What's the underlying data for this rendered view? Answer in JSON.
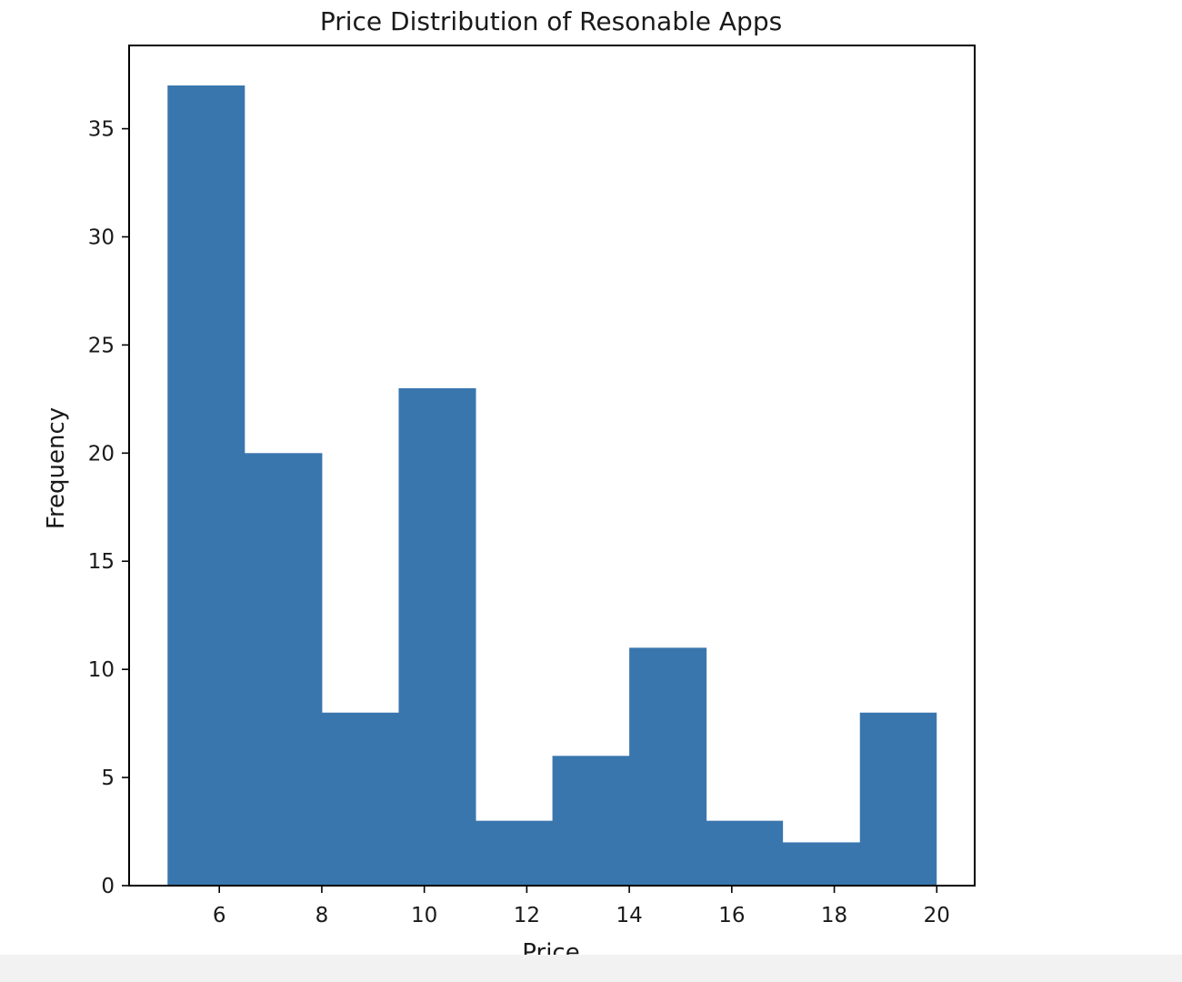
{
  "chart_data": {
    "type": "bar",
    "title": "Price Distribution of Resonable Apps",
    "xlabel": "Price",
    "ylabel": "Frequency",
    "bin_edges": [
      4.99,
      6.49,
      8.0,
      9.5,
      11.0,
      12.5,
      14.0,
      15.5,
      16.99,
      18.5,
      19.99
    ],
    "values": [
      37,
      20,
      8,
      23,
      3,
      6,
      11,
      3,
      2,
      8
    ],
    "xlim": [
      4.24,
      20.74
    ],
    "ylim": [
      0,
      38.85
    ],
    "xticks": [
      6,
      8,
      10,
      12,
      14,
      16,
      18,
      20
    ],
    "yticks": [
      0,
      5,
      10,
      15,
      20,
      25,
      30,
      35
    ],
    "bar_color": "#3a76ae",
    "grid": false
  }
}
